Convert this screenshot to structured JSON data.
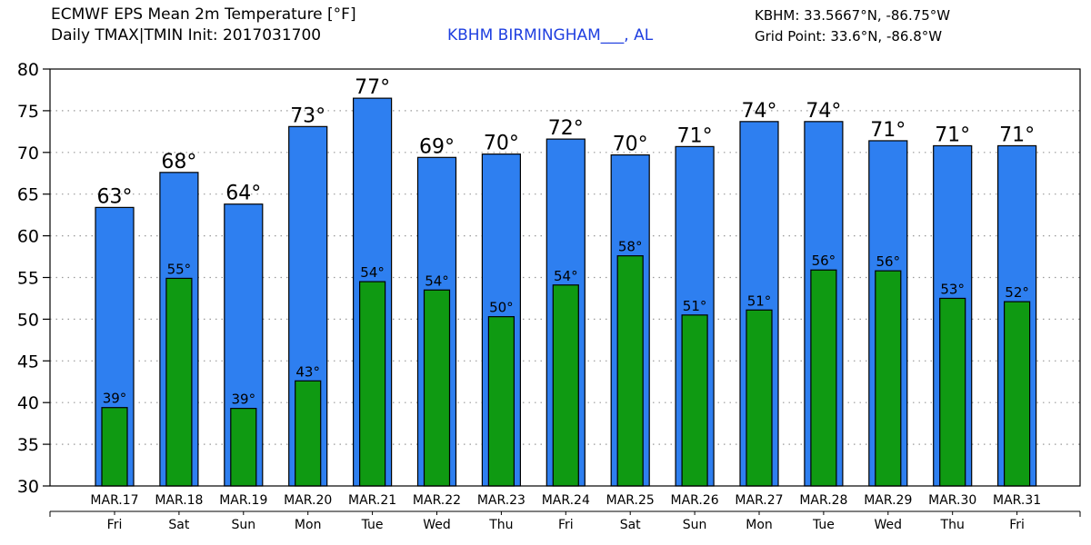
{
  "header": {
    "title_line1": "ECMWF EPS Mean 2m Temperature [°F]",
    "title_line2": "Daily TMAX|TMIN Init: 2017031700",
    "station": "KBHM BIRMINGHAM___, AL",
    "coord_line1": "KBHM: 33.5667°N, -86.75°W",
    "coord_line2": "Grid Point: 33.6°N, -86.8°W"
  },
  "colors": {
    "tmax": "#2e7ff0",
    "tmin": "#0f9a12",
    "station_text": "#1f3fe0"
  },
  "chart_data": {
    "type": "bar",
    "title": "ECMWF EPS Mean 2m Temperature [°F]",
    "xlabel": "",
    "ylabel": "",
    "ylim": [
      30,
      80
    ],
    "yticks": [
      30,
      35,
      40,
      45,
      50,
      55,
      60,
      65,
      70,
      75,
      80
    ],
    "grid": true,
    "categories": [
      "MAR.17",
      "MAR.18",
      "MAR.19",
      "MAR.20",
      "MAR.21",
      "MAR.22",
      "MAR.23",
      "MAR.24",
      "MAR.25",
      "MAR.26",
      "MAR.27",
      "MAR.28",
      "MAR.29",
      "MAR.30",
      "MAR.31"
    ],
    "weekdays": [
      "Fri",
      "Sat",
      "Sun",
      "Mon",
      "Tue",
      "Wed",
      "Thu",
      "Fri",
      "Sat",
      "Sun",
      "Mon",
      "Tue",
      "Wed",
      "Thu",
      "Fri"
    ],
    "series": [
      {
        "values": [
          63.4,
          67.6,
          63.8,
          73.1,
          76.5,
          69.4,
          69.8,
          71.6,
          69.7,
          70.7,
          73.7,
          73.7,
          71.4,
          70.8,
          70.8
        ],
        "labels": [
          "63°",
          "68°",
          "64°",
          "73°",
          "77°",
          "69°",
          "70°",
          "72°",
          "70°",
          "71°",
          "74°",
          "74°",
          "71°",
          "71°",
          "71°"
        ]
      },
      {
        "values": [
          39.4,
          54.9,
          39.3,
          42.6,
          54.5,
          53.5,
          50.3,
          54.1,
          57.6,
          50.5,
          51.1,
          55.9,
          55.8,
          52.5,
          52.1
        ],
        "labels": [
          "39°",
          "55°",
          "39°",
          "43°",
          "54°",
          "54°",
          "50°",
          "54°",
          "58°",
          "51°",
          "51°",
          "56°",
          "56°",
          "53°",
          "52°"
        ]
      }
    ]
  }
}
